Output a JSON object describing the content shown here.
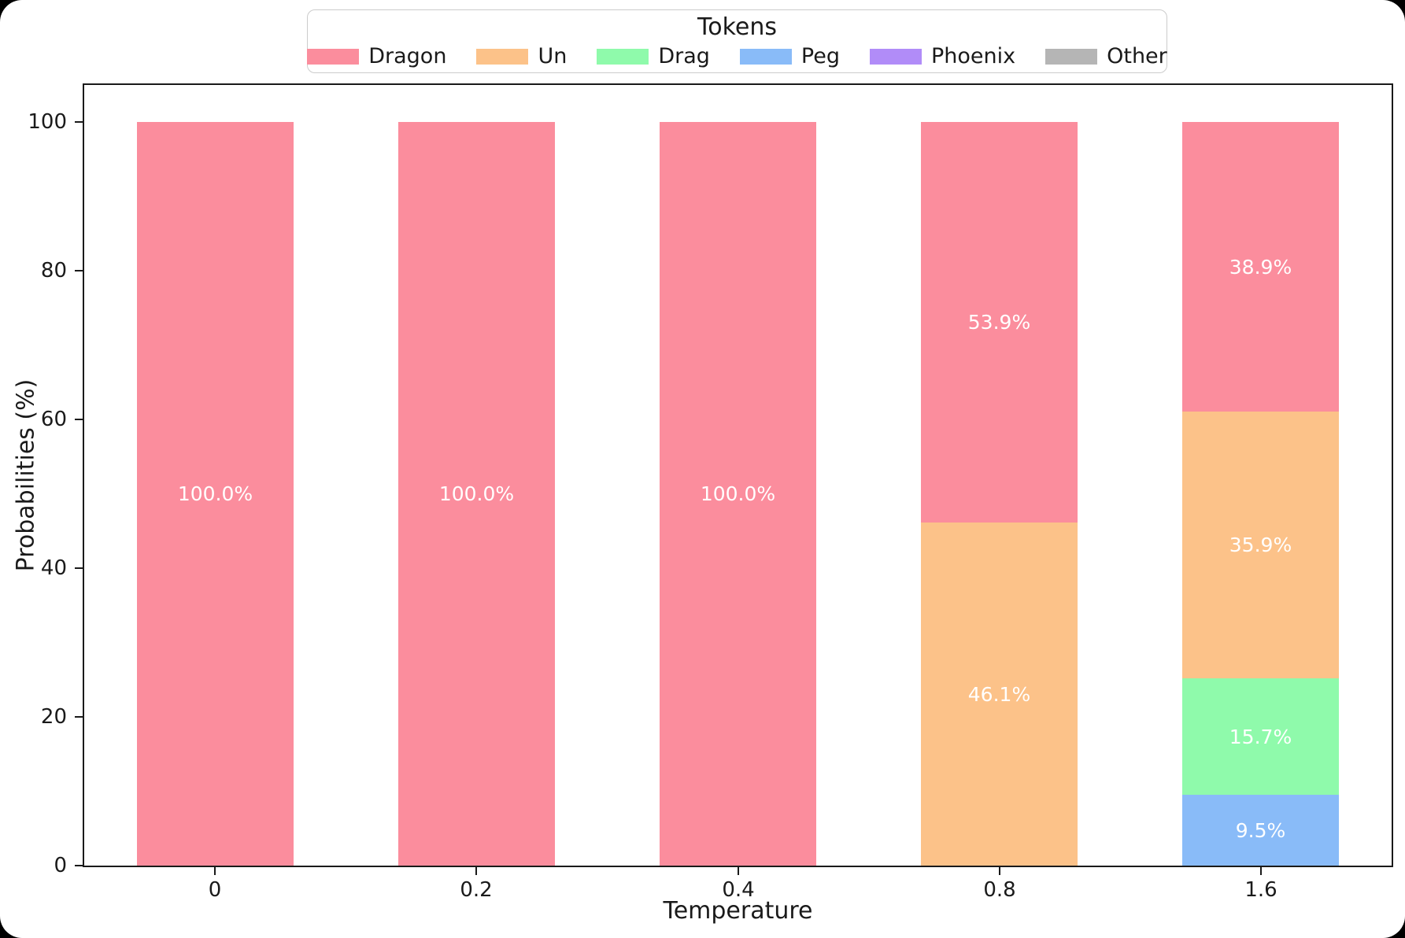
{
  "figure": {
    "background": "#ffffff",
    "frame_background": "#000000",
    "axis_color": "#1a1a1a"
  },
  "chart_data": {
    "type": "bar",
    "stacked": true,
    "grid": false,
    "legend_title": "Tokens",
    "legend_position": "top-center",
    "xlabel": "Temperature",
    "ylabel": "Probabilities (%)",
    "categories": [
      "0",
      "0.2",
      "0.4",
      "0.8",
      "1.6"
    ],
    "ylim": [
      0,
      105
    ],
    "yticks": [
      "0",
      "20",
      "40",
      "60",
      "80",
      "100"
    ],
    "bar_label_color": "#ffffff",
    "series": [
      {
        "name": "Dragon",
        "color": "#FB8D9D",
        "values": [
          100.0,
          100.0,
          100.0,
          53.9,
          38.9
        ],
        "labels": [
          "100.0%",
          "100.0%",
          "100.0%",
          "53.9%",
          "38.9%"
        ]
      },
      {
        "name": "Un",
        "color": "#FCC289",
        "values": [
          0,
          0,
          0,
          46.1,
          35.9
        ],
        "labels": [
          "",
          "",
          "",
          "46.1%",
          "35.9%"
        ]
      },
      {
        "name": "Drag",
        "color": "#8FFAAB",
        "values": [
          0,
          0,
          0,
          0,
          15.7
        ],
        "labels": [
          "",
          "",
          "",
          "",
          "15.7%"
        ]
      },
      {
        "name": "Peg",
        "color": "#89BBF8",
        "values": [
          0,
          0,
          0,
          0,
          9.5
        ],
        "labels": [
          "",
          "",
          "",
          "",
          "9.5%"
        ]
      },
      {
        "name": "Phoenix",
        "color": "#B18CF8",
        "values": [
          0,
          0,
          0,
          0,
          0
        ],
        "labels": [
          "",
          "",
          "",
          "",
          ""
        ]
      },
      {
        "name": "Other",
        "color": "#B5B5B5",
        "values": [
          0,
          0,
          0,
          0,
          0
        ],
        "labels": [
          "",
          "",
          "",
          "",
          ""
        ]
      }
    ]
  }
}
